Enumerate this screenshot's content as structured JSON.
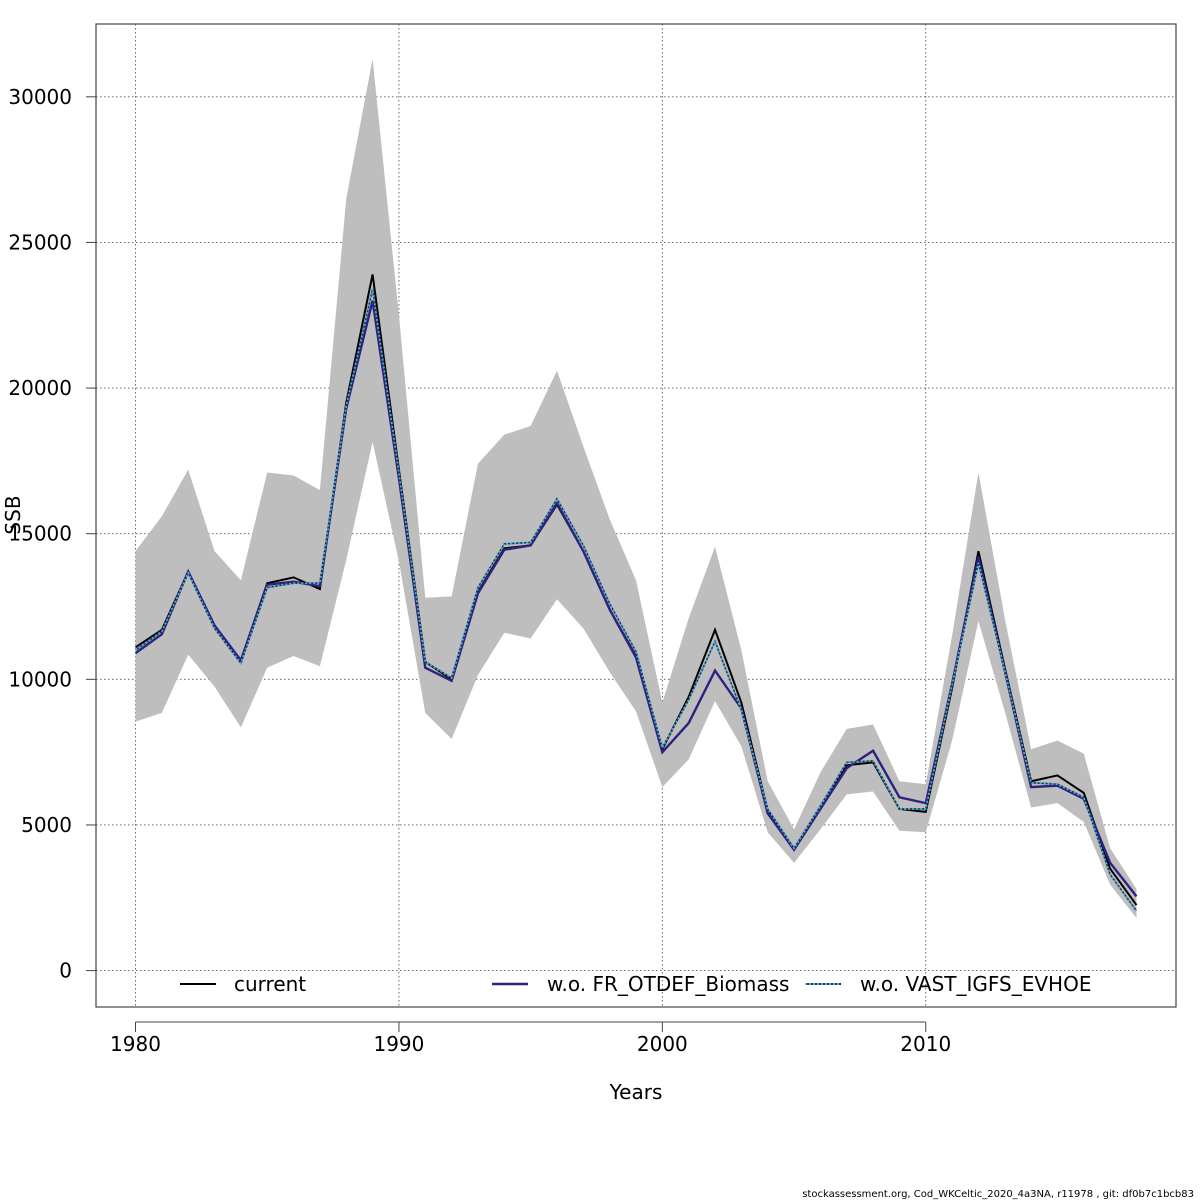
{
  "chart_data": {
    "type": "line",
    "xlabel": "Years",
    "ylabel": "SSB",
    "xlim": [
      1978.5,
      2019.5
    ],
    "ylim": [
      -1250,
      32500
    ],
    "x_ticks": [
      1980,
      1990,
      2000,
      2010
    ],
    "x_tick_labels": [
      "1980",
      "1990",
      "2000",
      "2010"
    ],
    "y_ticks": [
      0,
      5000,
      10000,
      15000,
      20000,
      25000,
      30000
    ],
    "y_tick_labels": [
      "0",
      "5000",
      "10000",
      "15000",
      "20000",
      "25000",
      "30000"
    ],
    "grid": true,
    "legend_position": "bottom",
    "x": [
      1980,
      1981,
      1982,
      1983,
      1984,
      1985,
      1986,
      1987,
      1988,
      1989,
      1990,
      1991,
      1992,
      1993,
      1994,
      1995,
      1996,
      1997,
      1998,
      1999,
      2000,
      2001,
      2002,
      2003,
      2004,
      2005,
      2006,
      2007,
      2008,
      2009,
      2010,
      2011,
      2012,
      2013,
      2014,
      2015,
      2016,
      2017,
      2018
    ],
    "band": {
      "color": "#bebebe",
      "upper": [
        14400,
        15600,
        17200,
        14400,
        13400,
        17100,
        17000,
        16500,
        26500,
        31300,
        22500,
        12800,
        12850,
        17400,
        18400,
        18700,
        20600,
        18000,
        15500,
        13400,
        9200,
        12100,
        14550,
        11000,
        6500,
        4850,
        6800,
        8300,
        8450,
        6500,
        6400,
        11500,
        17100,
        12100,
        7600,
        7900,
        7450,
        4200,
        2800
      ],
      "lower": [
        8550,
        8850,
        10850,
        9750,
        8350,
        10400,
        10800,
        10450,
        14100,
        18150,
        14050,
        8850,
        7950,
        10150,
        11600,
        11400,
        12750,
        11750,
        10250,
        8900,
        6300,
        7250,
        9250,
        7700,
        4750,
        3700,
        4850,
        6050,
        6150,
        4800,
        4750,
        7900,
        12000,
        8900,
        5600,
        5750,
        5100,
        2950,
        1800
      ]
    },
    "series": [
      {
        "name": "current",
        "color": "#000000",
        "dash": "solid",
        "values": [
          11100,
          11700,
          13700,
          11800,
          10650,
          13300,
          13500,
          13100,
          19500,
          23900,
          17200,
          10600,
          10000,
          13000,
          14500,
          14600,
          16000,
          14400,
          12400,
          10800,
          7600,
          9400,
          11700,
          9200,
          5500,
          4150,
          5600,
          7050,
          7150,
          5550,
          5450,
          9700,
          14400,
          10400,
          6500,
          6700,
          6100,
          3500,
          2250
        ]
      },
      {
        "name": "w.o. FR_OTDEF_Biomass",
        "color": "#2c2380",
        "dash": "solid",
        "values": [
          10900,
          11550,
          13700,
          11850,
          10650,
          13250,
          13350,
          13200,
          19300,
          23000,
          16900,
          10400,
          9950,
          12950,
          14450,
          14600,
          16050,
          14400,
          12400,
          10750,
          7500,
          8500,
          10300,
          9000,
          5400,
          4150,
          5550,
          6950,
          7550,
          5950,
          5750,
          9850,
          14200,
          10300,
          6300,
          6350,
          5900,
          3700,
          2550
        ]
      },
      {
        "name": "w.o. VAST_IGFS_EVHOE",
        "color": "#3eb3f5",
        "dash": "dotted",
        "values": [
          11000,
          11650,
          13650,
          11750,
          10550,
          13150,
          13300,
          13300,
          19400,
          23400,
          17100,
          10600,
          10050,
          13150,
          14650,
          14700,
          16200,
          14600,
          12600,
          10950,
          7650,
          9300,
          11300,
          8950,
          5550,
          4200,
          5650,
          7150,
          7200,
          5550,
          5550,
          9800,
          14000,
          10300,
          6450,
          6400,
          5950,
          3300,
          2050
        ]
      }
    ],
    "legend": [
      "current",
      "w.o. FR_OTDEF_Biomass",
      "w.o. VAST_IGFS_EVHOE"
    ]
  },
  "footer": "stockassessment.org, Cod_WKCeltic_2020_4a3NA, r11978 , git: df0b7c1bcb83"
}
